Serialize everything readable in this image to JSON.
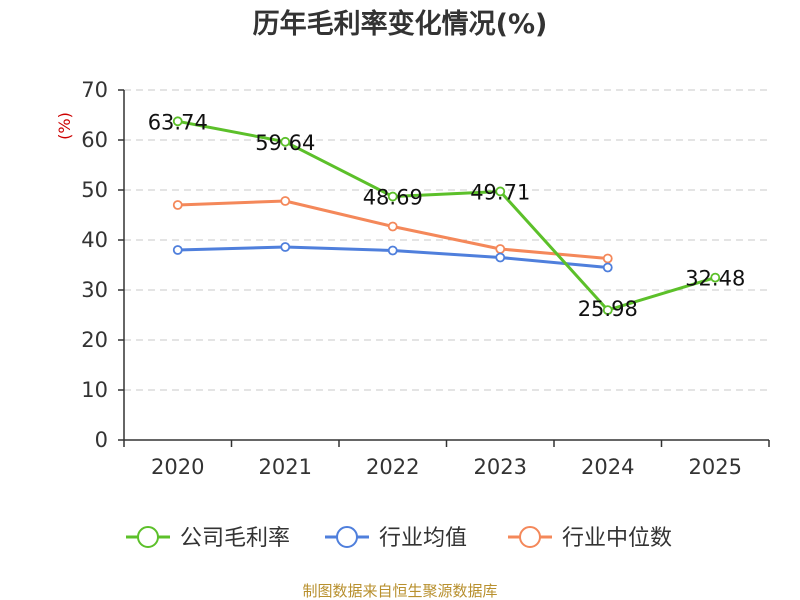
{
  "chart_data": {
    "type": "line",
    "title": "历年毛利率变化情况(%)",
    "ylabel": "(%)",
    "xlabel": "",
    "categories": [
      "2020",
      "2021",
      "2022",
      "2023",
      "2024",
      "2025"
    ],
    "ylim": [
      0,
      70
    ],
    "yticks": [
      0,
      10,
      20,
      30,
      40,
      50,
      60,
      70
    ],
    "grid": true,
    "legend_position": "bottom",
    "series": [
      {
        "name": "公司毛利率",
        "color": "#5cc02a",
        "values": [
          63.74,
          59.64,
          48.69,
          49.71,
          25.98,
          32.48
        ],
        "labels": [
          "63.74",
          "59.64",
          "48.69",
          "49.71",
          "25.98",
          "32.48"
        ]
      },
      {
        "name": "行业均值",
        "color": "#4f7fdc",
        "values": [
          38,
          38.6,
          37.9,
          36.5,
          34.5,
          null
        ]
      },
      {
        "name": "行业中位数",
        "color": "#f4885a",
        "values": [
          47,
          47.8,
          42.7,
          38.2,
          36.3,
          null
        ]
      }
    ]
  },
  "source": "制图数据来自恒生聚源数据库"
}
